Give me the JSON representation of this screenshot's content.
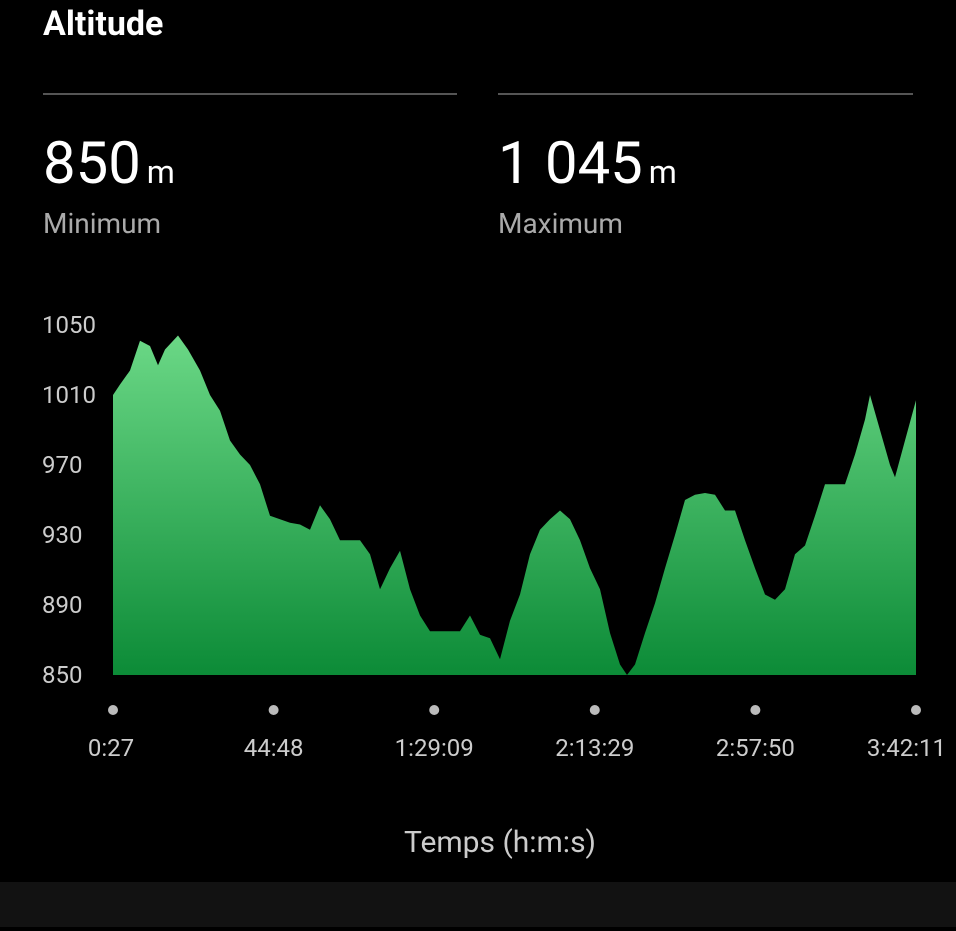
{
  "header": {
    "title": "Altitude"
  },
  "stats": [
    {
      "value": "850",
      "unit": "m",
      "label": "Minimum"
    },
    {
      "value": "1 045",
      "unit": "m",
      "label": "Maximum"
    }
  ],
  "chart_data": {
    "type": "area",
    "x_label": "Temps (h:m:s)",
    "colors": [
      "#6bd886",
      "#0c8b37"
    ],
    "x": [
      27,
      143,
      309,
      474,
      640,
      773,
      889,
      1104,
      1270,
      1468,
      1634,
      1800,
      1965,
      2131,
      2297,
      2462,
      2628,
      2794,
      2960,
      3125,
      3291,
      3457,
      3622,
      3788,
      3954,
      4119,
      4285,
      4451,
      4616,
      4782,
      4948,
      5113,
      5279,
      5445,
      5610,
      5776,
      5942,
      6107,
      6273,
      6439,
      6605,
      6770,
      6936,
      7102,
      7267,
      7433,
      7599,
      7764,
      7930,
      8096,
      8261,
      8427,
      8543,
      8675,
      8841,
      9007,
      9173,
      9338,
      9504,
      9670,
      9835,
      10001,
      10167,
      10332,
      10498,
      10664,
      10829,
      10995,
      11161,
      11326,
      11492,
      11658,
      11823,
      11989,
      12155,
      12320,
      12486,
      12569,
      12735,
      12900,
      12983,
      13149,
      13331
    ],
    "values": [
      1010,
      1016,
      1024,
      1041,
      1038,
      1027,
      1036,
      1044,
      1036,
      1024,
      1010,
      1001,
      984,
      976,
      970,
      959,
      941,
      939,
      937,
      936,
      933,
      947,
      939,
      927,
      927,
      927,
      919,
      899,
      911,
      921,
      899,
      884,
      875,
      875,
      875,
      875,
      884,
      873,
      871,
      859,
      881,
      896,
      919,
      933,
      939,
      944,
      939,
      927,
      911,
      899,
      874,
      856,
      850,
      856,
      874,
      891,
      911,
      930,
      950,
      953,
      954,
      953,
      944,
      944,
      927,
      911,
      896,
      893,
      899,
      919,
      924,
      941,
      959,
      959,
      959,
      976,
      996,
      1010,
      990,
      970,
      963,
      984,
      1007
    ],
    "xlim": [
      27,
      13331
    ],
    "xticks": [
      {
        "value": 27,
        "label": "0:27"
      },
      {
        "value": 2688,
        "label": "44:48"
      },
      {
        "value": 5349,
        "label": "1:29:09"
      },
      {
        "value": 8009,
        "label": "2:13:29"
      },
      {
        "value": 10670,
        "label": "2:57:50"
      },
      {
        "value": 13331,
        "label": "3:42:11"
      }
    ],
    "ylim": [
      850,
      1050
    ],
    "yticks": [
      850,
      890,
      930,
      970,
      1010,
      1050
    ]
  }
}
